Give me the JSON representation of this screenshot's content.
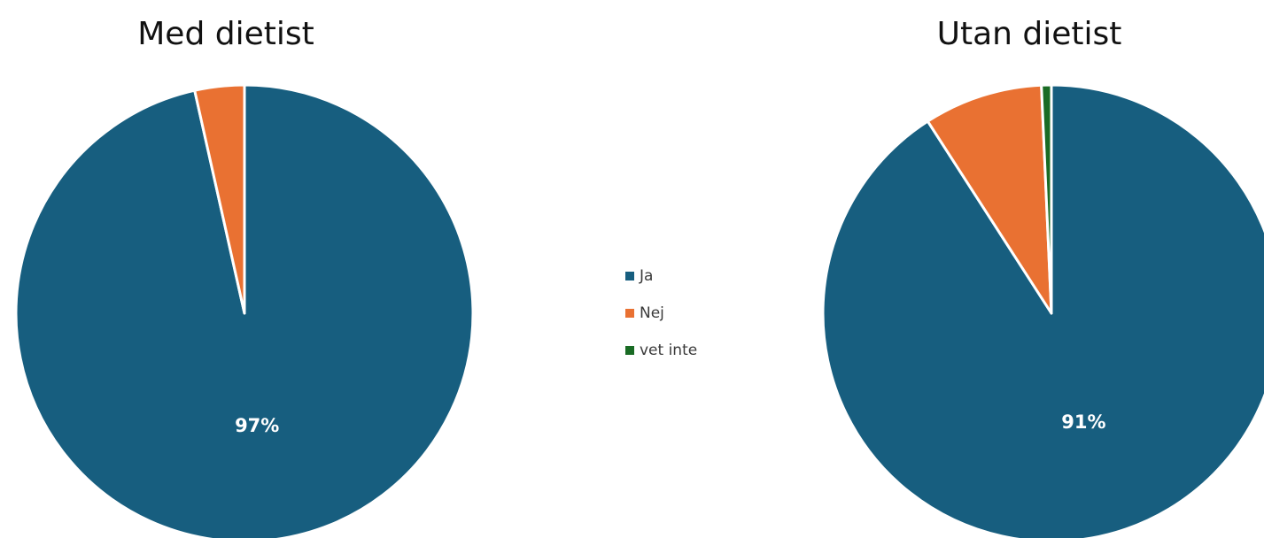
{
  "chart_data": [
    {
      "type": "pie",
      "title": "Med dietist",
      "categories": [
        "Ja",
        "Nej",
        "vet inte"
      ],
      "values": [
        96.5,
        3.5,
        0
      ],
      "data_labels": [
        "97%",
        "",
        ""
      ]
    },
    {
      "type": "pie",
      "title": "Utan dietist",
      "categories": [
        "Ja",
        "Nej",
        "vet inte"
      ],
      "values": [
        90.9,
        8.4,
        0.7
      ],
      "data_labels": [
        "91%",
        "",
        ""
      ]
    }
  ],
  "legend": {
    "placement": "center",
    "items": [
      {
        "label": "Ja",
        "color": "#175e7f"
      },
      {
        "label": "Nej",
        "color": "#e97132"
      },
      {
        "label": "vet inte",
        "color": "#196b24"
      }
    ]
  },
  "colors": [
    "#175e7f",
    "#e97132",
    "#196b24"
  ]
}
